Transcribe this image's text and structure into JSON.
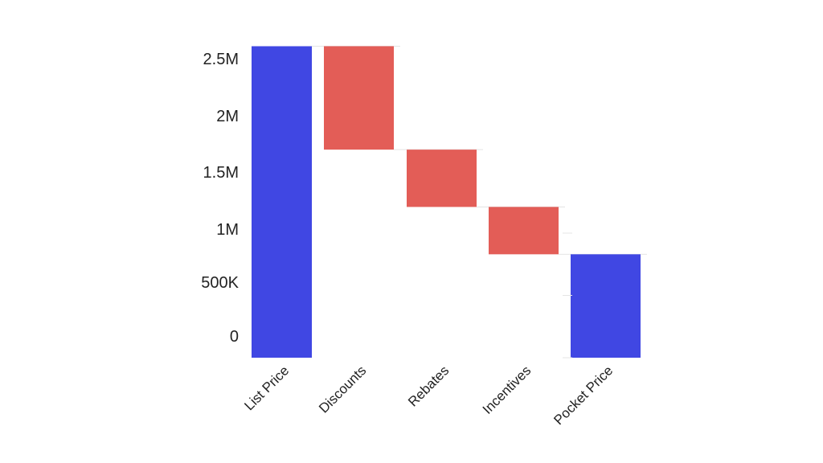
{
  "chart_data": {
    "type": "waterfall",
    "title": "",
    "xlabel": "",
    "ylabel": "",
    "categories": [
      "List Price",
      "Discounts",
      "Rebates",
      "Incentives",
      "Pocket Price"
    ],
    "values": [
      2500000,
      -830000,
      -460000,
      -380000,
      830000
    ],
    "kinds": [
      "total",
      "delta",
      "delta",
      "delta",
      "total"
    ],
    "ylim": [
      0,
      2500000
    ],
    "y_ticks": [
      {
        "value": 0,
        "label": "0"
      },
      {
        "value": 500000,
        "label": "500K"
      },
      {
        "value": 1000000,
        "label": "1M"
      },
      {
        "value": 1500000,
        "label": "1.5M"
      },
      {
        "value": 2000000,
        "label": "2M"
      },
      {
        "value": 2500000,
        "label": "2.5M"
      }
    ],
    "grid": false,
    "colors": {
      "total": "#4047e3",
      "decrease": "#e35d57",
      "connector": "#e4e4e4"
    }
  }
}
